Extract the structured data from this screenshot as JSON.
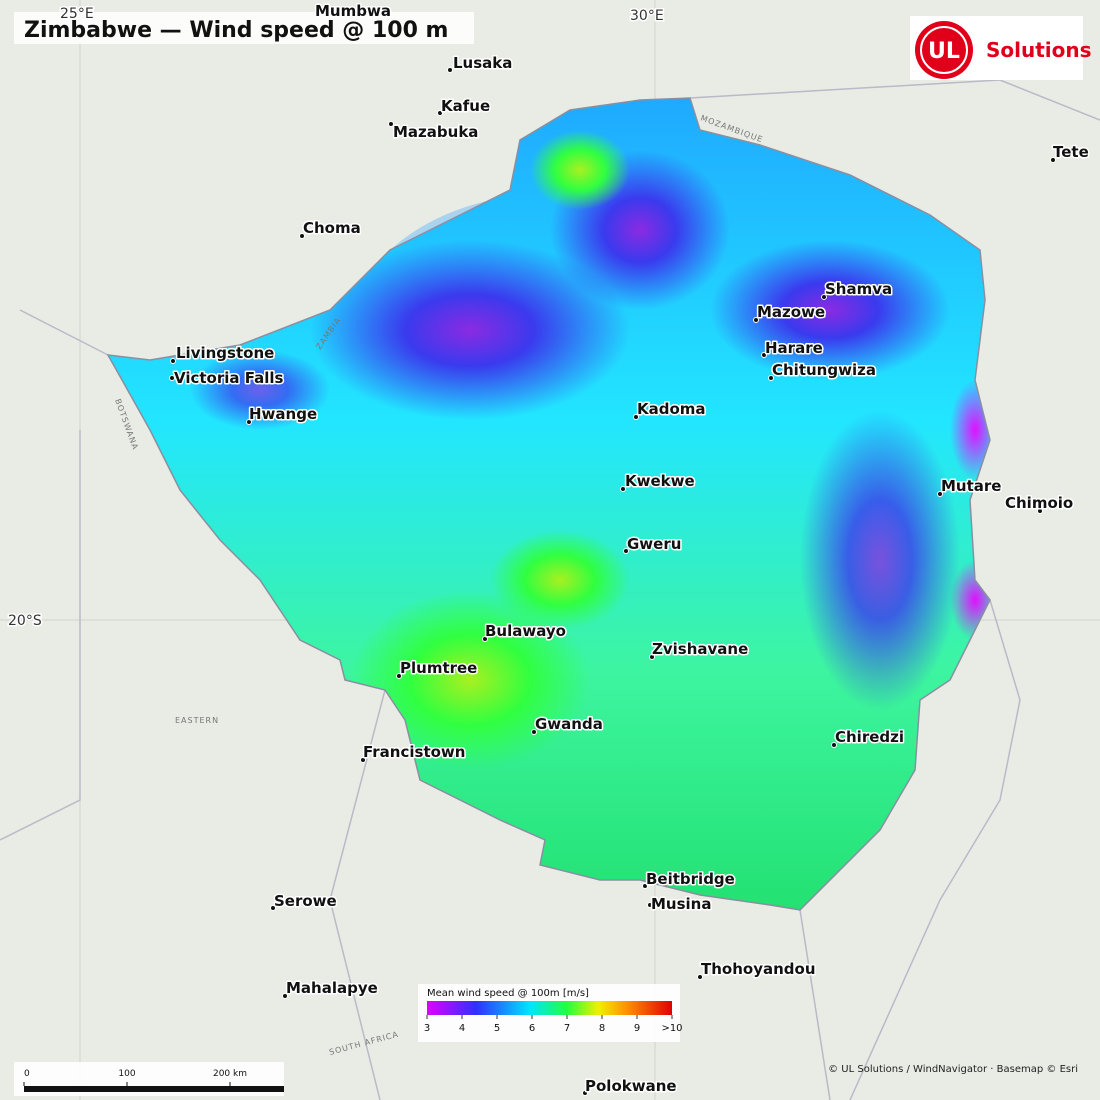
{
  "title": "Zimbabwe — Wind speed @ 100 m",
  "logo": {
    "mark": "UL",
    "text": "Solutions"
  },
  "graticule": [
    "25°E",
    "30°E",
    "20°S"
  ],
  "cities": [
    "Mumbwa",
    "Lusaka",
    "Kafue",
    "Mazabuka",
    "Choma",
    "Livingstone",
    "Victoria Falls",
    "Hwange",
    "Shamva",
    "Mazowe",
    "Harare",
    "Chitungwiza",
    "Kadoma",
    "Kwekwe",
    "Gweru",
    "Mutare",
    "Chimoio",
    "Bulawayo",
    "Zvishavane",
    "Plumtree",
    "Gwanda",
    "Chiredzi",
    "Francistown",
    "Beitbridge",
    "Musina",
    "Serowe",
    "Thohoyandou",
    "Mahalapye",
    "Polokwane",
    "Tete"
  ],
  "basemap_labels": [
    "ZAMBIA",
    "BOTSWANA",
    "MOZAMBIQUE",
    "SOUTH AFRICA",
    "EASTERN"
  ],
  "legend": {
    "title": "Mean wind speed @ 100m [m/s]",
    "lim": [
      3,
      10
    ],
    "ticks": [
      3,
      4,
      5,
      6,
      7,
      8,
      9,
      {
        "value": 10,
        "label": ">10"
      }
    ]
  },
  "scale_bar": {
    "ticks": [
      0,
      100,
      {
        "value": 200,
        "label": "200 km"
      }
    ]
  },
  "attribution": "© UL Solutions / WindNavigator · Basemap © Esri"
}
